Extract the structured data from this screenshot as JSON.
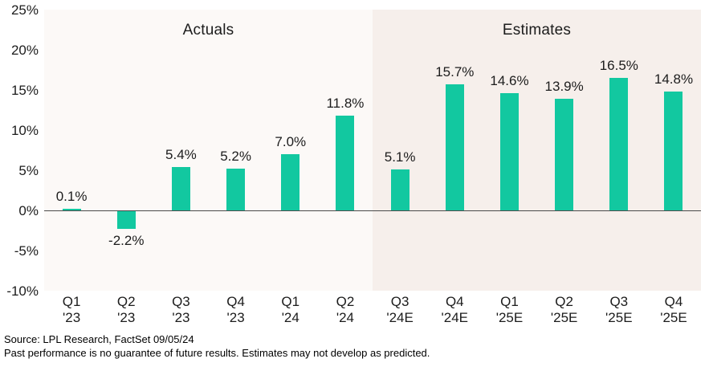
{
  "chart_data": {
    "type": "bar",
    "title": "",
    "categories": [
      {
        "quarter": "Q1",
        "year": "'23"
      },
      {
        "quarter": "Q2",
        "year": "'23"
      },
      {
        "quarter": "Q3",
        "year": "'23"
      },
      {
        "quarter": "Q4",
        "year": "'23"
      },
      {
        "quarter": "Q1",
        "year": "'24"
      },
      {
        "quarter": "Q2",
        "year": "'24"
      },
      {
        "quarter": "Q3",
        "year": "'24E"
      },
      {
        "quarter": "Q4",
        "year": "'24E"
      },
      {
        "quarter": "Q1",
        "year": "'25E"
      },
      {
        "quarter": "Q2",
        "year": "'25E"
      },
      {
        "quarter": "Q3",
        "year": "'25E"
      },
      {
        "quarter": "Q4",
        "year": "'25E"
      }
    ],
    "values": [
      0.1,
      -2.2,
      5.4,
      5.2,
      7.0,
      11.8,
      5.1,
      15.7,
      14.6,
      13.9,
      16.5,
      14.8
    ],
    "data_labels": [
      "0.1%",
      "-2.2%",
      "5.4%",
      "5.2%",
      "7.0%",
      "11.8%",
      "5.1%",
      "15.7%",
      "14.6%",
      "13.9%",
      "16.5%",
      "14.8%"
    ],
    "sections": [
      {
        "label": "Actuals",
        "count": 6
      },
      {
        "label": "Estimates",
        "count": 6
      }
    ],
    "y_ticks": [
      "25%",
      "20%",
      "15%",
      "10%",
      "5%",
      "0%",
      "-5%",
      "-10%"
    ],
    "y_tick_values": [
      25,
      20,
      15,
      10,
      5,
      0,
      -5,
      -10
    ],
    "ylim": [
      -10,
      25
    ],
    "xlabel": "",
    "ylabel": "",
    "grid": false,
    "legend": "none",
    "colors": {
      "bar": "#12C8A0",
      "actuals_bg": "#FCF9F7",
      "estimates_bg": "#F6EFEB",
      "zero_line": "#4A4A4A",
      "text": "#1C1C1C"
    }
  },
  "footer": {
    "source_line": "Source: LPL Research, FactSet 09/05/24",
    "disclaimer_line": "Past performance is no guarantee of future results. Estimates may not develop as predicted."
  }
}
